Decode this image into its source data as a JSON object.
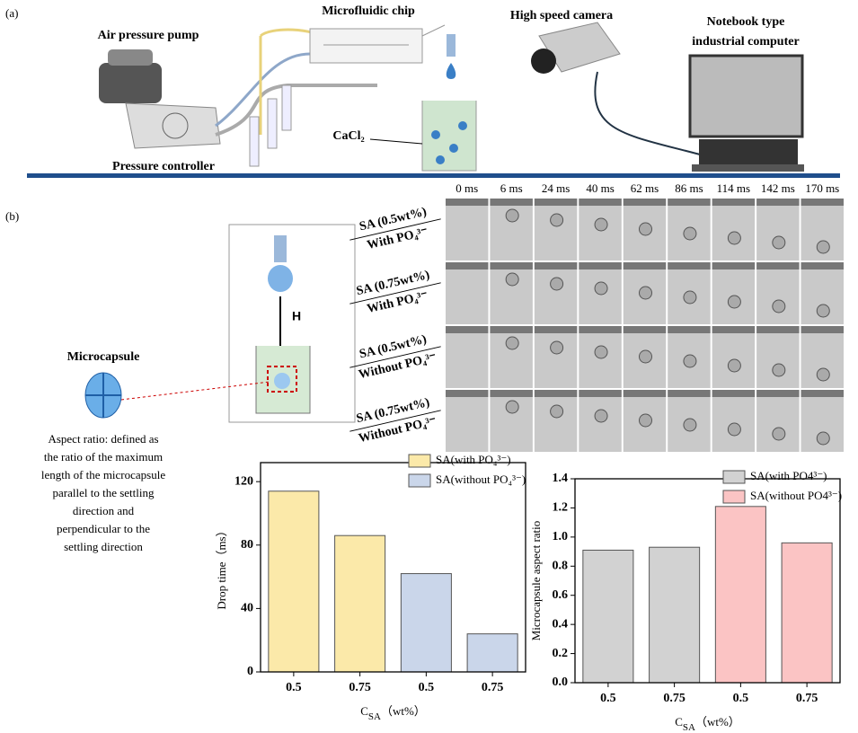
{
  "panel_a": {
    "label": "(a)",
    "air_pressure_pump": "Air pressure pump",
    "microfluidic_chip": "Microfluidic chip",
    "high_speed_camera": "High speed camera",
    "computer": [
      "Notebook type",
      "industrial computer"
    ],
    "pressure_controller": "Pressure controller",
    "cacl2": "CaCl₂"
  },
  "panel_b": {
    "label": "(b)",
    "times": [
      "0 ms",
      "6 ms",
      "24 ms",
      "40 ms",
      "62 ms",
      "86 ms",
      "114 ms",
      "142 ms",
      "170 ms"
    ],
    "rows": [
      [
        "SA (0.5wt%)",
        "With PO₄³⁻"
      ],
      [
        "SA (0.75wt%)",
        "With PO₄³⁻"
      ],
      [
        "SA (0.5wt%)",
        "Without PO₄³⁻"
      ],
      [
        "SA (0.75wt%)",
        "Without PO₄³⁻"
      ]
    ],
    "height_label": "H",
    "microcapsule": "Microcapsule",
    "aspect_ratio_note": [
      "Aspect ratio: defined as",
      "the ratio of the maximum",
      "length of the microcapsule",
      "parallel to the settling",
      "direction and",
      "perpendicular to the",
      "settling direction"
    ]
  },
  "chart_data": [
    {
      "type": "bar",
      "y_label": "Drop time（ms）",
      "x_label": {
        "main": "C",
        "sub": "SA",
        "unit": "（wt%）"
      },
      "categories": [
        "0.5",
        "0.75",
        "0.5",
        "0.75"
      ],
      "series": [
        {
          "name": "SA(with PO₄³⁻)",
          "color": "#fbe9a9",
          "values": [
            114,
            86,
            null,
            null
          ]
        },
        {
          "name": "SA(without PO₄³⁻)",
          "color": "#cad6ea",
          "values": [
            null,
            null,
            62,
            24
          ]
        }
      ],
      "ylim": [
        0,
        132
      ],
      "yticks": [
        0,
        40,
        80,
        120
      ],
      "legend": "upper right"
    },
    {
      "type": "bar",
      "y_label": "Microcapsule aspect ratio",
      "x_label": {
        "main": "C",
        "sub": "SA",
        "unit": "（wt%）"
      },
      "categories": [
        "0.5",
        "0.75",
        "0.5",
        "0.75"
      ],
      "series": [
        {
          "name": "SA(with PO4³⁻)",
          "color": "#d2d2d2",
          "values": [
            0.91,
            0.93,
            null,
            null
          ]
        },
        {
          "name": "SA(without PO4³⁻)",
          "color": "#fbc4c4",
          "values": [
            null,
            null,
            1.21,
            0.96
          ]
        }
      ],
      "ylim": [
        0,
        1.4
      ],
      "yticks": [
        {
          "value": 0,
          "label": "0.0"
        },
        0.2,
        0.4,
        0.6,
        0.8,
        {
          "value": 1,
          "label": "1.0"
        },
        1.2,
        1.4
      ],
      "legend": "upper right"
    }
  ]
}
